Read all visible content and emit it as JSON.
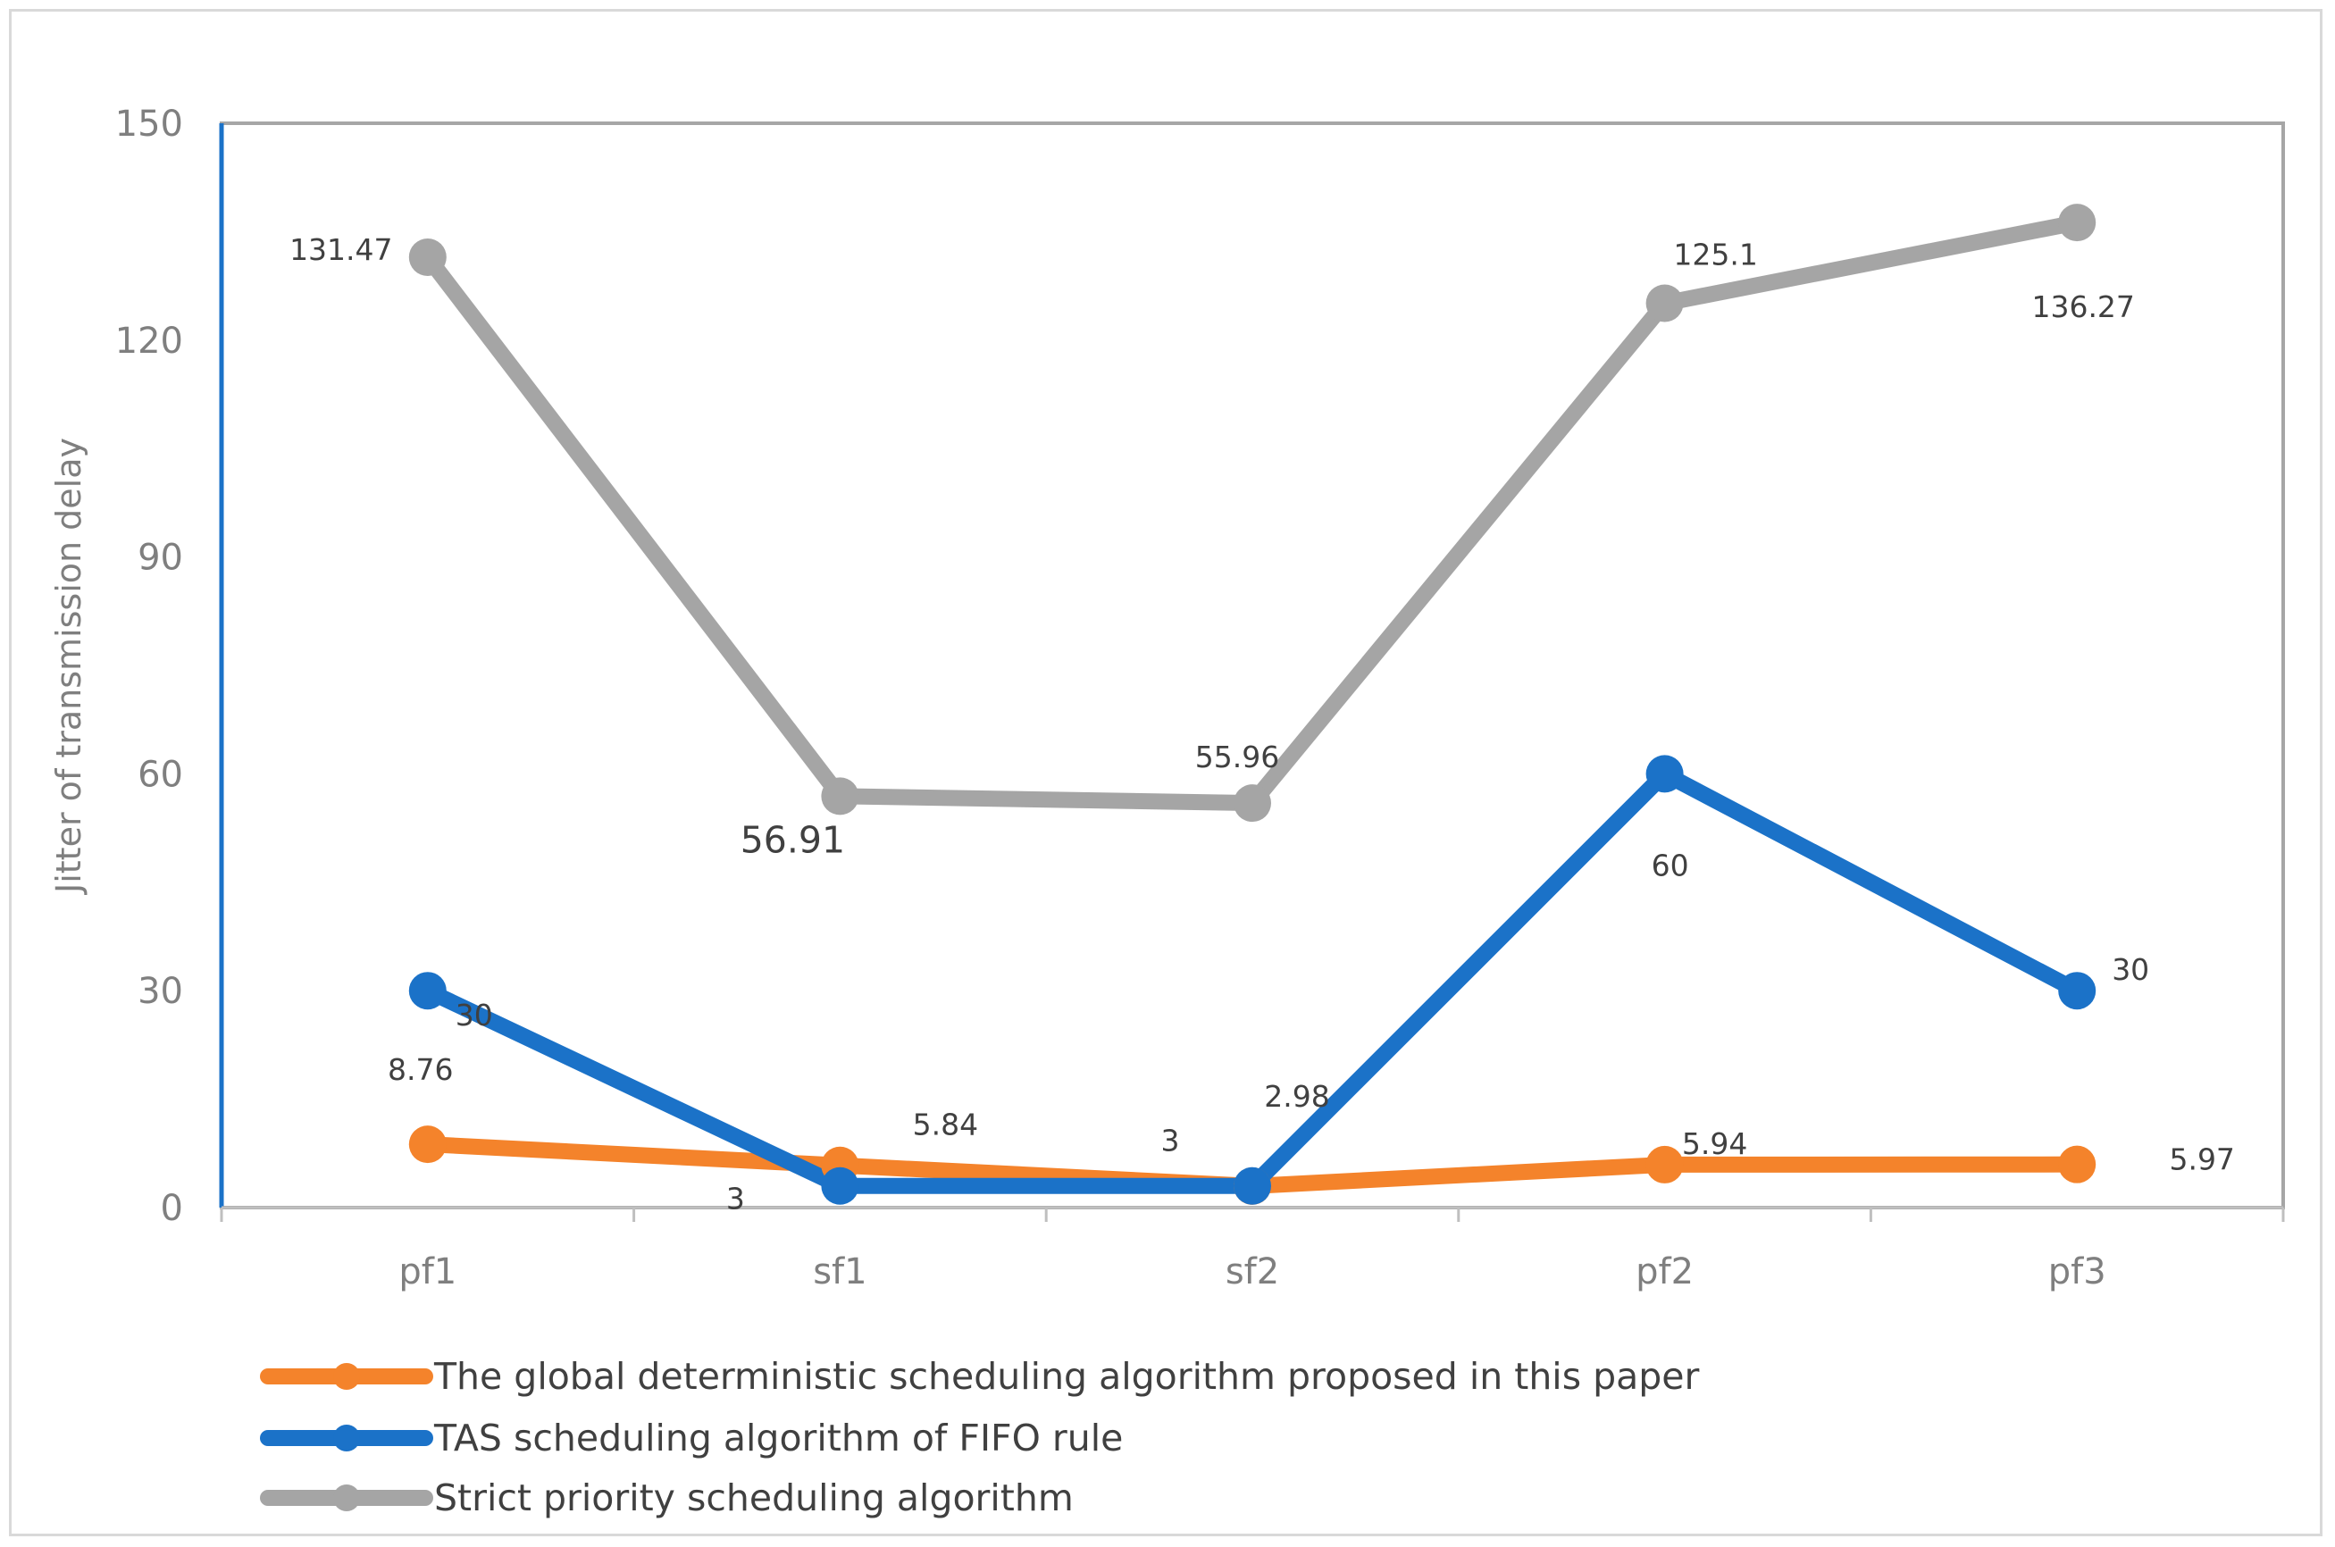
{
  "chart_data": {
    "type": "line",
    "title": "",
    "xlabel": "",
    "ylabel": "Jitter of transmission delay",
    "ylim": [
      0,
      150
    ],
    "yticks": [
      0,
      30,
      60,
      90,
      120,
      150
    ],
    "categories": [
      "pf1",
      "sf1",
      "sf2",
      "pf2",
      "pf3"
    ],
    "grid": false,
    "legend": "bottom",
    "series": [
      {
        "name": "The global deterministic scheduling algorithm proposed in this paper",
        "color": "#f4832b",
        "values": [
          8.76,
          5.84,
          2.98,
          5.94,
          5.97
        ],
        "labels": [
          "8.76",
          "5.84",
          "2.98",
          "5.94",
          "5.97"
        ]
      },
      {
        "name": "TAS scheduling algorithm of FIFO rule",
        "color": "#1b72c8",
        "values": [
          30,
          3,
          3,
          60,
          30
        ],
        "labels": [
          "30",
          "3",
          "3",
          "60",
          "30"
        ]
      },
      {
        "name": "Strict priority scheduling algorithm",
        "color": "#a5a5a5",
        "values": [
          131.47,
          56.91,
          55.96,
          125.1,
          136.27
        ],
        "labels": [
          "131.47",
          "56.91",
          "55.96",
          "125.1",
          "136.27"
        ]
      }
    ]
  }
}
